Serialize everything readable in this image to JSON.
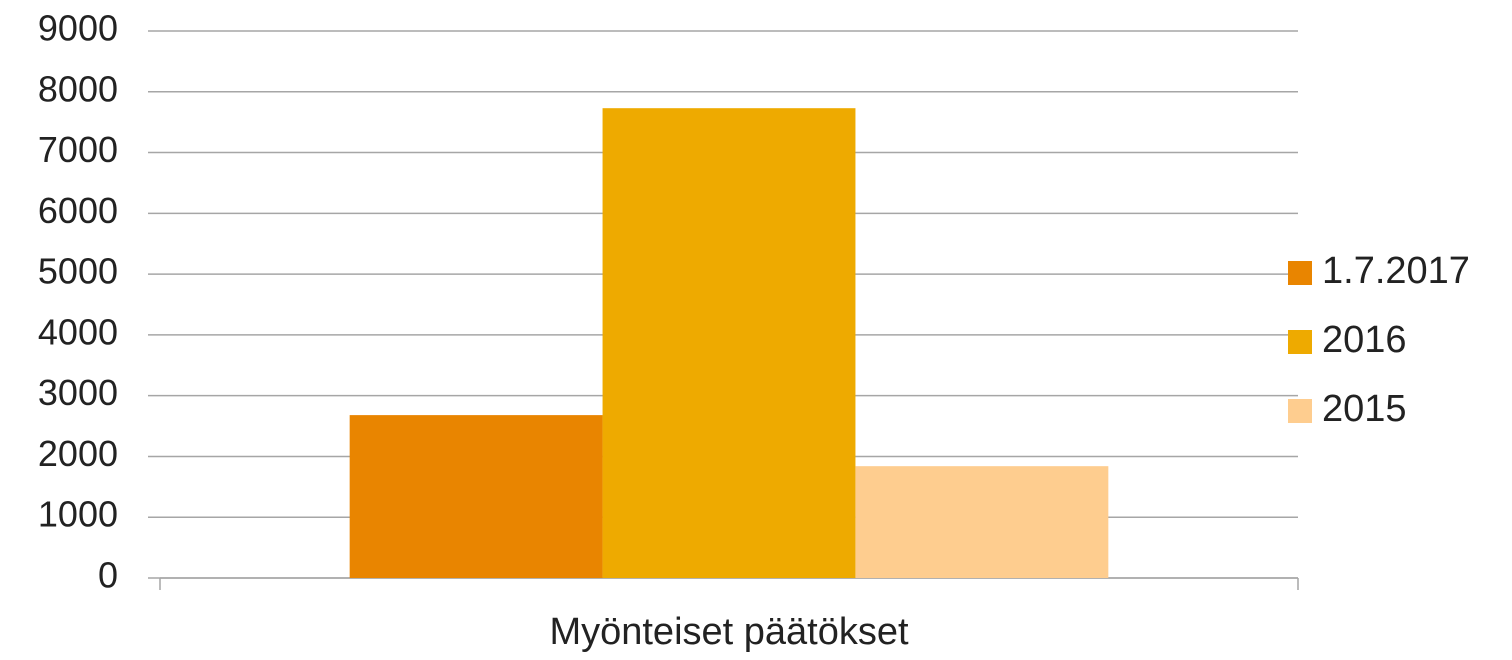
{
  "chart_data": {
    "type": "bar",
    "categories": [
      "Myönteiset päätökset"
    ],
    "series": [
      {
        "name": "1.7.2017",
        "color": "#e98500",
        "values": [
          2680
        ]
      },
      {
        "name": "2016",
        "color": "#eeaa00",
        "values": [
          7730
        ]
      },
      {
        "name": "2015",
        "color": "#fecd8f",
        "values": [
          1840
        ]
      }
    ],
    "ylim": [
      0,
      9000
    ],
    "yticks": [
      0,
      1000,
      2000,
      3000,
      4000,
      5000,
      6000,
      7000,
      8000,
      9000
    ],
    "grid": true,
    "legend": "right"
  }
}
